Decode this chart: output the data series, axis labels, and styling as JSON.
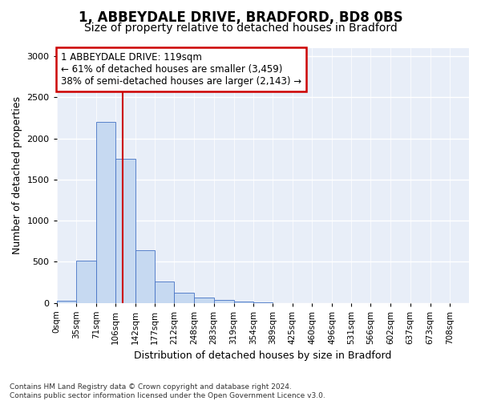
{
  "title_line1": "1, ABBEYDALE DRIVE, BRADFORD, BD8 0BS",
  "title_line2": "Size of property relative to detached houses in Bradford",
  "xlabel": "Distribution of detached houses by size in Bradford",
  "ylabel": "Number of detached properties",
  "footnote": "Contains HM Land Registry data © Crown copyright and database right 2024.\nContains public sector information licensed under the Open Government Licence v3.0.",
  "bin_labels": [
    "0sqm",
    "35sqm",
    "71sqm",
    "106sqm",
    "142sqm",
    "177sqm",
    "212sqm",
    "248sqm",
    "283sqm",
    "319sqm",
    "354sqm",
    "389sqm",
    "425sqm",
    "460sqm",
    "496sqm",
    "531sqm",
    "566sqm",
    "602sqm",
    "637sqm",
    "673sqm",
    "708sqm"
  ],
  "bar_values": [
    20,
    510,
    2200,
    1750,
    635,
    255,
    120,
    65,
    30,
    10,
    3,
    0,
    0,
    0,
    0,
    0,
    0,
    0,
    0,
    0
  ],
  "bar_color": "#c6d9f1",
  "bar_edge_color": "#4472c4",
  "vline_x": 119,
  "annotation_text": "1 ABBEYDALE DRIVE: 119sqm\n← 61% of detached houses are smaller (3,459)\n38% of semi-detached houses are larger (2,143) →",
  "annotation_box_facecolor": "#ffffff",
  "annotation_box_edgecolor": "#cc0000",
  "vline_color": "#cc0000",
  "ylim": [
    0,
    3100
  ],
  "xlim_max": 743,
  "background_color": "#e8eef8",
  "grid_color": "#ffffff",
  "fig_facecolor": "#ffffff",
  "title1_fontsize": 12,
  "title2_fontsize": 10,
  "tick_fontsize": 7.5,
  "ylabel_fontsize": 9,
  "xlabel_fontsize": 9,
  "annotation_fontsize": 8.5,
  "footnote_fontsize": 6.5,
  "bin_edges": [
    0,
    35,
    71,
    106,
    142,
    177,
    212,
    248,
    283,
    319,
    354,
    389,
    425,
    460,
    496,
    531,
    566,
    602,
    637,
    673,
    708
  ]
}
